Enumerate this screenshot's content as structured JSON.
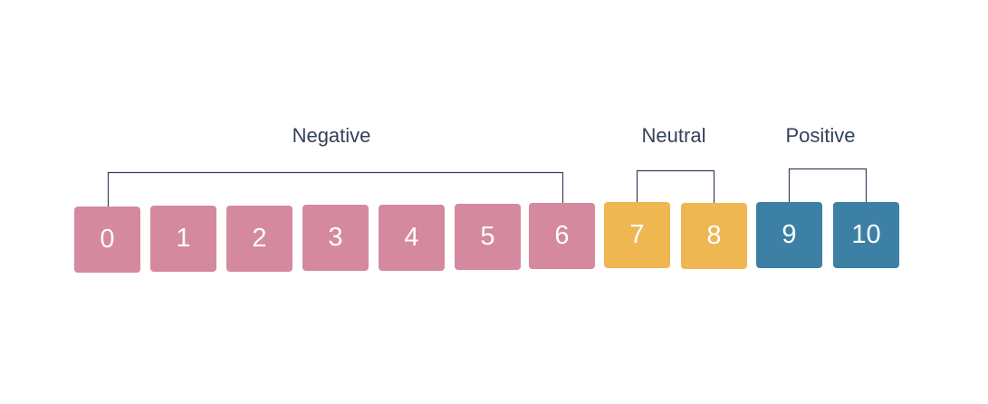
{
  "groups": [
    {
      "label": "Negative",
      "color": "#d4899e",
      "scores": [
        "0",
        "1",
        "2",
        "3",
        "4",
        "5",
        "6"
      ]
    },
    {
      "label": "Neutral",
      "color": "#eeb752",
      "scores": [
        "7",
        "8"
      ]
    },
    {
      "label": "Positive",
      "color": "#3c80a5",
      "scores": [
        "9",
        "10"
      ]
    }
  ],
  "bracket_color": "#33425a"
}
